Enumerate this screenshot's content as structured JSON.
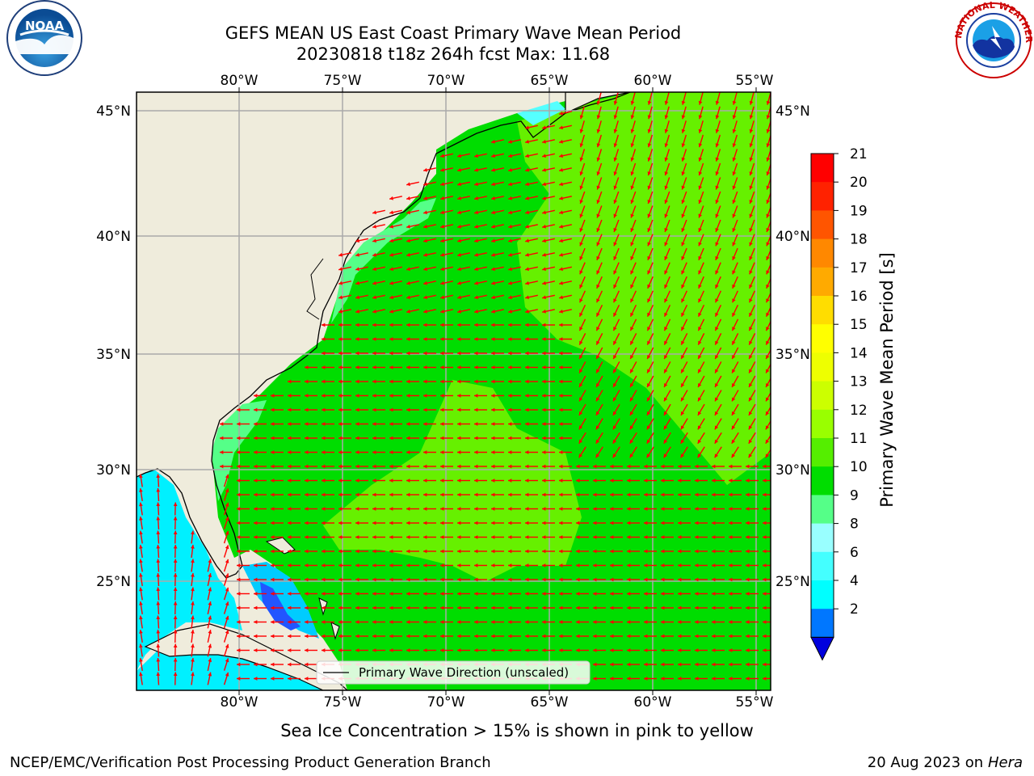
{
  "title": {
    "line1": "GEFS MEAN US East Coast Primary Wave Mean Period",
    "line2": "20230818 t18z 264h fcst   Max: 11.68"
  },
  "map": {
    "lon_ticks": [
      "80°W",
      "75°W",
      "70°W",
      "65°W",
      "60°W",
      "55°W"
    ],
    "lat_ticks": [
      "45°N",
      "40°N",
      "35°N",
      "30°N",
      "25°N"
    ],
    "extent": {
      "lon": [
        -85,
        -54.5
      ],
      "lat": [
        20.5,
        46
      ]
    },
    "grid": true,
    "legend": {
      "label": "Primary Wave Direction (unscaled)",
      "position": "bottom-center"
    },
    "arrow_color": "#ff0000",
    "land_color": "#efecdc",
    "field": "primary wave mean period",
    "max_value": 11.68
  },
  "colorbar": {
    "label": "Primary Wave Mean Period [s]",
    "ticks": [
      "21",
      "20",
      "19",
      "18",
      "17",
      "16",
      "15",
      "14",
      "13",
      "12",
      "11",
      "10",
      "9",
      "8",
      "6",
      "4",
      "2"
    ],
    "colors": [
      "#ff0000",
      "#ff2200",
      "#ff5500",
      "#ff8800",
      "#ffaa00",
      "#ffdd00",
      "#ffff00",
      "#eeff00",
      "#ccff00",
      "#99ff00",
      "#55ee00",
      "#00dd00",
      "#55ff88",
      "#99ffff",
      "#44ffff",
      "#00ffff",
      "#0077ff",
      "#0000dd"
    ]
  },
  "caption": "Sea Ice Concentration > 15% is shown in pink to yellow",
  "footer": {
    "left": "NCEP/EMC/Verification Post Processing Product Generation Branch",
    "right_date": "20 Aug 2023 on",
    "right_host": "Hera"
  },
  "logos": {
    "left": {
      "icon": "noaa-logo",
      "text": "NOAA"
    },
    "right": {
      "icon": "nws-logo",
      "text": "NATIONAL WEATHER SERVICE"
    }
  }
}
